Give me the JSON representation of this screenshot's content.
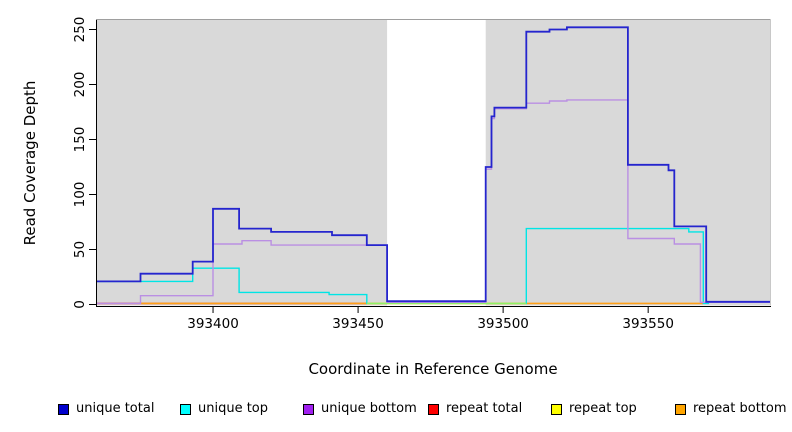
{
  "figure": {
    "background": "#FFFFFF",
    "panel_color": "#D9D9D9",
    "axis_color": "#000000",
    "x_axis": {
      "label": "Coordinate in Reference Genome",
      "ticks": [
        "393400",
        "393450",
        "393500",
        "393550"
      ]
    },
    "y_axis": {
      "label": "Read Coverage Depth",
      "ticks": [
        "0",
        "50",
        "100",
        "150",
        "200",
        "250"
      ]
    },
    "legend": [
      {
        "label": "unique total",
        "swatch": "#0000CD"
      },
      {
        "label": "unique top",
        "swatch": "#00FFFF"
      },
      {
        "label": "unique bottom",
        "swatch": "#A020F0"
      },
      {
        "label": "repeat total",
        "swatch": "#FF0000"
      },
      {
        "label": "repeat top",
        "swatch": "#FFFF00"
      },
      {
        "label": "repeat bottom",
        "swatch": "#FFA500"
      }
    ]
  },
  "chart_data": {
    "type": "line",
    "style": "step-coverage",
    "title": "",
    "xlabel": "Coordinate in Reference Genome",
    "ylabel": "Read Coverage Depth",
    "xlim": [
      393360,
      393592
    ],
    "ylim": [
      0,
      258
    ],
    "x_ticks": [
      393400,
      393450,
      393500,
      393550
    ],
    "y_ticks": [
      0,
      50,
      100,
      150,
      200,
      250
    ],
    "grid": false,
    "legend_position": "bottom",
    "shaded_regions": [
      {
        "x0": 393360,
        "x1": 393460,
        "color": "#D9D9D9"
      },
      {
        "x0": 393494,
        "x1": 393592,
        "color": "#D9D9D9"
      }
    ],
    "gap_region": {
      "x0": 393460,
      "x1": 393494,
      "color": "#FFFFFF"
    },
    "series": [
      {
        "name": "repeat total",
        "color": "#DC4050",
        "width": 1.6,
        "opacity": 1,
        "points": [
          [
            393360,
            1
          ],
          [
            393453,
            1
          ]
        ]
      },
      {
        "name": "repeat bottom",
        "color": "#FFA018",
        "width": 1.6,
        "opacity": 1,
        "points": [
          [
            393375,
            1
          ],
          [
            393569,
            1
          ]
        ]
      },
      {
        "name": "unique top",
        "color": "#00E5E5",
        "width": 1.4,
        "opacity": 1,
        "points": [
          [
            393360,
            21
          ],
          [
            393393,
            33
          ],
          [
            393409,
            11
          ],
          [
            393440,
            9
          ],
          [
            393453,
            1
          ],
          [
            393508,
            69
          ],
          [
            393564,
            66
          ],
          [
            393569,
            1
          ],
          [
            393571,
            1
          ]
        ]
      },
      {
        "name": "repeat top",
        "color": "#FFFF00",
        "width": 1.6,
        "opacity": 0.55,
        "points": [
          [
            393453,
            1
          ],
          [
            393508,
            1
          ]
        ]
      },
      {
        "name": "unique bottom",
        "color": "#BA8FE3",
        "width": 1.4,
        "opacity": 1,
        "points": [
          [
            393360,
            1
          ],
          [
            393375,
            8
          ],
          [
            393400,
            55
          ],
          [
            393410,
            58
          ],
          [
            393420,
            54
          ],
          [
            393460,
            2
          ],
          [
            393494,
            123
          ],
          [
            393496,
            169
          ],
          [
            393497,
            178
          ],
          [
            393508,
            183
          ],
          [
            393516,
            185
          ],
          [
            393522,
            186
          ],
          [
            393543,
            60
          ],
          [
            393559,
            55
          ],
          [
            393568,
            2
          ],
          [
            393592,
            2
          ]
        ]
      },
      {
        "name": "unique total",
        "color": "#2525CE",
        "width": 1.8,
        "opacity": 1,
        "points": [
          [
            393360,
            21
          ],
          [
            393375,
            28
          ],
          [
            393393,
            39
          ],
          [
            393400,
            87
          ],
          [
            393409,
            69
          ],
          [
            393420,
            66
          ],
          [
            393441,
            63
          ],
          [
            393453,
            54
          ],
          [
            393460,
            3
          ],
          [
            393494,
            125
          ],
          [
            393496,
            171
          ],
          [
            393497,
            179
          ],
          [
            393508,
            248
          ],
          [
            393516,
            250
          ],
          [
            393522,
            252
          ],
          [
            393543,
            127
          ],
          [
            393557,
            122
          ],
          [
            393559,
            71
          ],
          [
            393570,
            2.5
          ],
          [
            393592,
            2.5
          ]
        ]
      }
    ]
  }
}
